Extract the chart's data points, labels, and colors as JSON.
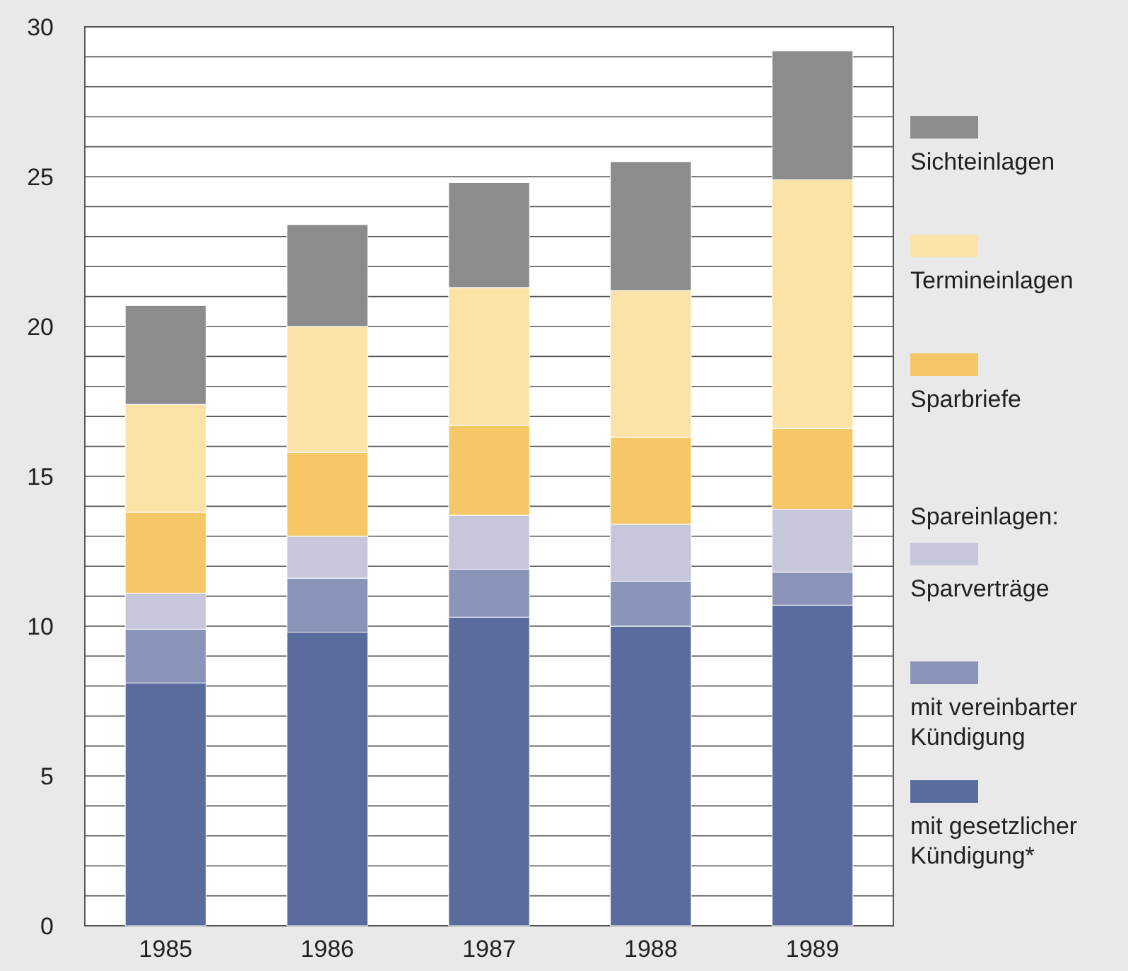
{
  "chart_data": {
    "type": "bar",
    "stacked": true,
    "categories": [
      "1985",
      "1986",
      "1987",
      "1988",
      "1989"
    ],
    "series": [
      {
        "name": "mit gesetzlicher Kündigung*",
        "color": "#5a6c9e",
        "values": [
          8.1,
          9.8,
          10.3,
          10.0,
          10.7
        ]
      },
      {
        "name": "mit vereinbarter Kündigung",
        "color": "#8a93b8",
        "values": [
          1.8,
          1.8,
          1.6,
          1.5,
          1.1
        ]
      },
      {
        "name": "Sparverträge",
        "color": "#c6c7da",
        "values": [
          1.2,
          1.4,
          1.8,
          1.9,
          2.1
        ]
      },
      {
        "name": "Sparbriefe",
        "color": "#f6c766",
        "values": [
          2.7,
          2.8,
          3.0,
          2.9,
          2.7
        ]
      },
      {
        "name": "Termineinlagen",
        "color": "#fbe3a8",
        "values": [
          3.6,
          4.2,
          4.6,
          4.9,
          8.3
        ]
      },
      {
        "name": "Sichteinlagen",
        "color": "#8c8c8c",
        "values": [
          3.3,
          3.4,
          3.5,
          4.3,
          4.3
        ]
      }
    ],
    "annotations": [
      "Spareinlagen:"
    ],
    "ylim": [
      0,
      30
    ],
    "yticks": [
      0,
      {
        "value": 1,
        "label": null
      },
      {
        "value": 2,
        "label": null
      },
      {
        "value": 3,
        "label": null
      },
      {
        "value": 4,
        "label": null
      },
      5,
      {
        "value": 6,
        "label": null
      },
      {
        "value": 7,
        "label": null
      },
      {
        "value": 8,
        "label": null
      },
      {
        "value": 9,
        "label": null
      },
      10,
      {
        "value": 11,
        "label": null
      },
      {
        "value": 12,
        "label": null
      },
      {
        "value": 13,
        "label": null
      },
      {
        "value": 14,
        "label": null
      },
      15,
      {
        "value": 16,
        "label": null
      },
      {
        "value": 17,
        "label": null
      },
      {
        "value": 18,
        "label": null
      },
      {
        "value": 19,
        "label": null
      },
      20,
      {
        "value": 21,
        "label": null
      },
      {
        "value": 22,
        "label": null
      },
      {
        "value": 23,
        "label": null
      },
      {
        "value": 24,
        "label": null
      },
      25,
      {
        "value": 26,
        "label": null
      },
      {
        "value": 27,
        "label": null
      },
      {
        "value": 28,
        "label": null
      },
      {
        "value": 29,
        "label": null
      },
      30
    ],
    "grid": "y",
    "legend": "right"
  }
}
